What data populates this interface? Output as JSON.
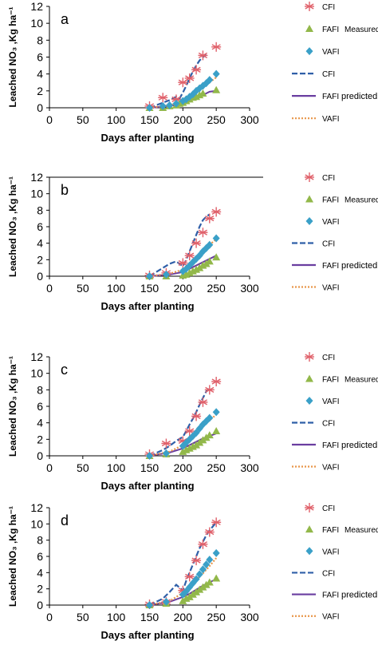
{
  "colors": {
    "cfi": "#e0606a",
    "fafi": "#92b84a",
    "vafi": "#3aa0c8",
    "cfi_pred": "#2f5fa8",
    "fafi_pred": "#6a3ea0",
    "vafi_pred": "#e8964a",
    "axis": "#000000"
  },
  "chart_data": [
    {
      "type": "line",
      "panel_label": "a",
      "xlabel": "Days after planting",
      "ylabel": "Leached NO₃ ,Kg ha⁻¹",
      "xlim": [
        0,
        300
      ],
      "ylim": [
        0,
        12
      ],
      "xticks": [
        "0",
        "50",
        "100",
        "150",
        "200",
        "250",
        "300"
      ],
      "yticks": [
        "0",
        "2",
        "4",
        "6",
        "8",
        "10",
        "12"
      ],
      "legend": {
        "measured_label": "Measured",
        "predicted_label": "predicted",
        "measured": [
          "CFI",
          "FAFI",
          "VAFI"
        ],
        "predicted": [
          "CFI",
          "FAFI",
          "VAFI"
        ]
      },
      "measured": [
        {
          "name": "CFI",
          "marker": "asterisk",
          "x": [
            150,
            170,
            190,
            200,
            210,
            220,
            230,
            250
          ],
          "y": [
            0.2,
            1.2,
            1.0,
            3.0,
            3.5,
            4.5,
            6.2,
            7.2
          ]
        },
        {
          "name": "FAFI",
          "marker": "triangle",
          "x": [
            150,
            170,
            180,
            190,
            195,
            200,
            205,
            210,
            215,
            220,
            225,
            230,
            250
          ],
          "y": [
            0,
            0,
            0.2,
            0.3,
            0.5,
            0.6,
            0.8,
            1.0,
            1.2,
            1.3,
            1.5,
            1.7,
            2.1
          ]
        },
        {
          "name": "VAFI",
          "marker": "diamond",
          "x": [
            150,
            170,
            180,
            190,
            200,
            205,
            210,
            215,
            220,
            225,
            230,
            235,
            240,
            250
          ],
          "y": [
            0,
            0.2,
            0.3,
            0.5,
            0.8,
            1.0,
            1.3,
            1.6,
            2.0,
            2.3,
            2.6,
            2.9,
            3.3,
            4.0
          ]
        }
      ],
      "predicted": [
        {
          "name": "CFI",
          "x": [
            150,
            170,
            180,
            190,
            195,
            200,
            205,
            210,
            215,
            220,
            225,
            230,
            235
          ],
          "y": [
            0,
            0.6,
            0.9,
            1.3,
            1.1,
            1.8,
            2.6,
            3.5,
            4.3,
            5.0,
            5.6,
            6.0,
            6.3
          ]
        },
        {
          "name": "FAFI",
          "x": [
            150,
            180,
            200,
            210,
            220,
            230,
            240,
            250
          ],
          "y": [
            0,
            0.2,
            0.5,
            0.8,
            1.1,
            1.5,
            1.9,
            2.0
          ]
        },
        {
          "name": "VAFI",
          "x": [
            150,
            180,
            200,
            210,
            220,
            230,
            240,
            250
          ],
          "y": [
            0,
            0.3,
            0.7,
            1.2,
            1.8,
            2.4,
            3.0,
            3.6
          ]
        }
      ]
    },
    {
      "type": "line",
      "panel_label": "b",
      "xlabel": "Days after planting",
      "ylabel": "Leached NO₃ ,Kg ha⁻¹",
      "xlim": [
        0,
        300
      ],
      "ylim": [
        0,
        12
      ],
      "xticks": [
        "0",
        "50",
        "100",
        "150",
        "200",
        "250",
        "300"
      ],
      "yticks": [
        "0",
        "2",
        "4",
        "6",
        "8",
        "10",
        "12"
      ],
      "legend": {
        "measured_label": "Measured",
        "predicted_label": "predicted",
        "measured": [
          "CFI",
          "FAFI",
          "VAFI"
        ],
        "predicted": [
          "CFI",
          "FAFI",
          "VAFI"
        ]
      },
      "measured": [
        {
          "name": "CFI",
          "marker": "asterisk",
          "x": [
            150,
            175,
            200,
            210,
            220,
            230,
            240,
            250
          ],
          "y": [
            0.1,
            0.4,
            1.6,
            2.5,
            4.0,
            5.3,
            7.0,
            7.8
          ]
        },
        {
          "name": "FAFI",
          "marker": "triangle",
          "x": [
            150,
            175,
            200,
            205,
            210,
            215,
            220,
            225,
            230,
            235,
            240,
            250
          ],
          "y": [
            0,
            0,
            0.1,
            0.2,
            0.4,
            0.6,
            0.8,
            1.0,
            1.3,
            1.5,
            1.8,
            2.3
          ]
        },
        {
          "name": "VAFI",
          "marker": "diamond",
          "x": [
            150,
            175,
            200,
            205,
            210,
            215,
            220,
            225,
            230,
            235,
            240,
            250
          ],
          "y": [
            0,
            0.2,
            0.6,
            0.9,
            1.3,
            1.7,
            2.1,
            2.5,
            3.0,
            3.4,
            3.8,
            4.6
          ]
        }
      ],
      "predicted": [
        {
          "name": "CFI",
          "x": [
            150,
            170,
            180,
            190,
            200,
            205,
            210,
            215,
            220,
            225,
            230,
            235,
            240
          ],
          "y": [
            0,
            1.0,
            1.5,
            1.8,
            1.2,
            2.0,
            3.0,
            4.0,
            5.0,
            6.0,
            6.8,
            7.2,
            7.5
          ]
        },
        {
          "name": "FAFI",
          "x": [
            150,
            180,
            200,
            210,
            220,
            230,
            240,
            250
          ],
          "y": [
            0,
            0.2,
            0.5,
            0.9,
            1.3,
            1.7,
            2.1,
            2.5
          ]
        },
        {
          "name": "VAFI",
          "x": [
            150,
            180,
            200,
            210,
            220,
            230,
            240,
            250
          ],
          "y": [
            0,
            0.3,
            0.8,
            1.5,
            2.2,
            3.0,
            3.8,
            4.5
          ]
        }
      ]
    },
    {
      "type": "line",
      "panel_label": "c",
      "xlabel": "Days after planting",
      "ylabel": "Leached NO₃ ,Kg ha⁻¹",
      "xlim": [
        0,
        300
      ],
      "ylim": [
        0,
        12
      ],
      "xticks": [
        "0",
        "50",
        "100",
        "150",
        "200",
        "250",
        "300"
      ],
      "yticks": [
        "0",
        "2",
        "4",
        "6",
        "8",
        "10",
        "12"
      ],
      "legend": {
        "measured_label": "Measured",
        "predicted_label": "predicted",
        "measured": [
          "CFI",
          "FAFI",
          "VAFI"
        ],
        "predicted": [
          "CFI",
          "FAFI",
          "VAFI"
        ]
      },
      "measured": [
        {
          "name": "CFI",
          "marker": "asterisk",
          "x": [
            150,
            175,
            200,
            210,
            220,
            230,
            240,
            250
          ],
          "y": [
            0.2,
            1.5,
            1.8,
            3.0,
            4.8,
            6.5,
            8.0,
            9.0
          ]
        },
        {
          "name": "FAFI",
          "marker": "triangle",
          "x": [
            150,
            175,
            200,
            205,
            210,
            215,
            220,
            225,
            230,
            235,
            240,
            250
          ],
          "y": [
            0,
            0.2,
            0.5,
            0.7,
            0.9,
            1.1,
            1.3,
            1.6,
            1.9,
            2.2,
            2.5,
            3.0
          ]
        },
        {
          "name": "VAFI",
          "marker": "diamond",
          "x": [
            150,
            175,
            200,
            205,
            210,
            215,
            220,
            225,
            230,
            235,
            240,
            250
          ],
          "y": [
            0,
            0.3,
            1.2,
            1.6,
            2.0,
            2.4,
            2.8,
            3.3,
            3.8,
            4.2,
            4.6,
            5.3
          ]
        }
      ],
      "predicted": [
        {
          "name": "CFI",
          "x": [
            150,
            170,
            180,
            190,
            200,
            205,
            210,
            215,
            220,
            225,
            230,
            235,
            240
          ],
          "y": [
            0,
            0.7,
            1.2,
            1.8,
            2.3,
            3.0,
            3.8,
            4.5,
            5.3,
            6.2,
            7.0,
            7.8,
            8.2
          ]
        },
        {
          "name": "FAFI",
          "x": [
            150,
            180,
            200,
            210,
            220,
            230,
            240,
            250
          ],
          "y": [
            0,
            0.4,
            0.9,
            1.3,
            1.7,
            2.1,
            2.4,
            2.7
          ]
        },
        {
          "name": "VAFI",
          "x": [
            150,
            180,
            200,
            210,
            220,
            230,
            240,
            250
          ],
          "y": [
            0,
            0.5,
            1.3,
            2.0,
            2.8,
            3.6,
            4.3,
            5.0
          ]
        }
      ]
    },
    {
      "type": "line",
      "panel_label": "d",
      "xlabel": "Days after planting",
      "ylabel": "Leached NO₃ ,Kg ha⁻¹",
      "xlim": [
        0,
        300
      ],
      "ylim": [
        0,
        12
      ],
      "xticks": [
        "0",
        "50",
        "100",
        "150",
        "200",
        "250",
        "300"
      ],
      "yticks": [
        "0",
        "2",
        "4",
        "6",
        "8",
        "10",
        "12"
      ],
      "legend": {
        "measured_label": "Measured",
        "predicted_label": "predicted",
        "measured": [
          "CFI",
          "FAFI",
          "VAFI"
        ],
        "predicted": [
          "CFI",
          "FAFI",
          "VAFI"
        ]
      },
      "measured": [
        {
          "name": "CFI",
          "marker": "asterisk",
          "x": [
            150,
            175,
            200,
            210,
            220,
            230,
            240,
            250
          ],
          "y": [
            0.1,
            0.4,
            1.8,
            3.5,
            5.5,
            7.5,
            9.0,
            10.2
          ]
        },
        {
          "name": "FAFI",
          "marker": "triangle",
          "x": [
            150,
            175,
            200,
            205,
            210,
            215,
            220,
            225,
            230,
            235,
            240,
            250
          ],
          "y": [
            0,
            0.2,
            0.5,
            0.8,
            1.0,
            1.3,
            1.6,
            1.9,
            2.2,
            2.5,
            2.8,
            3.3
          ]
        },
        {
          "name": "VAFI",
          "marker": "diamond",
          "x": [
            150,
            175,
            200,
            205,
            210,
            215,
            220,
            225,
            230,
            235,
            240,
            250
          ],
          "y": [
            0,
            0.4,
            1.3,
            1.7,
            2.2,
            2.7,
            3.2,
            3.8,
            4.4,
            5.0,
            5.6,
            6.4
          ]
        }
      ],
      "predicted": [
        {
          "name": "CFI",
          "x": [
            150,
            170,
            180,
            190,
            200,
            205,
            210,
            215,
            220,
            225,
            230,
            235,
            240,
            250
          ],
          "y": [
            0,
            0.8,
            1.6,
            2.5,
            1.8,
            3.0,
            4.0,
            5.0,
            6.0,
            7.0,
            7.8,
            8.6,
            9.2,
            10.2
          ]
        },
        {
          "name": "FAFI",
          "x": [
            150,
            180,
            200,
            210,
            220,
            230,
            240,
            250
          ],
          "y": [
            0,
            0.4,
            1.0,
            1.4,
            1.9,
            2.4,
            2.8,
            3.2
          ]
        },
        {
          "name": "VAFI",
          "x": [
            150,
            180,
            200,
            210,
            220,
            230,
            240,
            250
          ],
          "y": [
            0,
            0.5,
            1.5,
            2.3,
            3.1,
            3.9,
            4.8,
            5.8
          ]
        }
      ]
    }
  ]
}
